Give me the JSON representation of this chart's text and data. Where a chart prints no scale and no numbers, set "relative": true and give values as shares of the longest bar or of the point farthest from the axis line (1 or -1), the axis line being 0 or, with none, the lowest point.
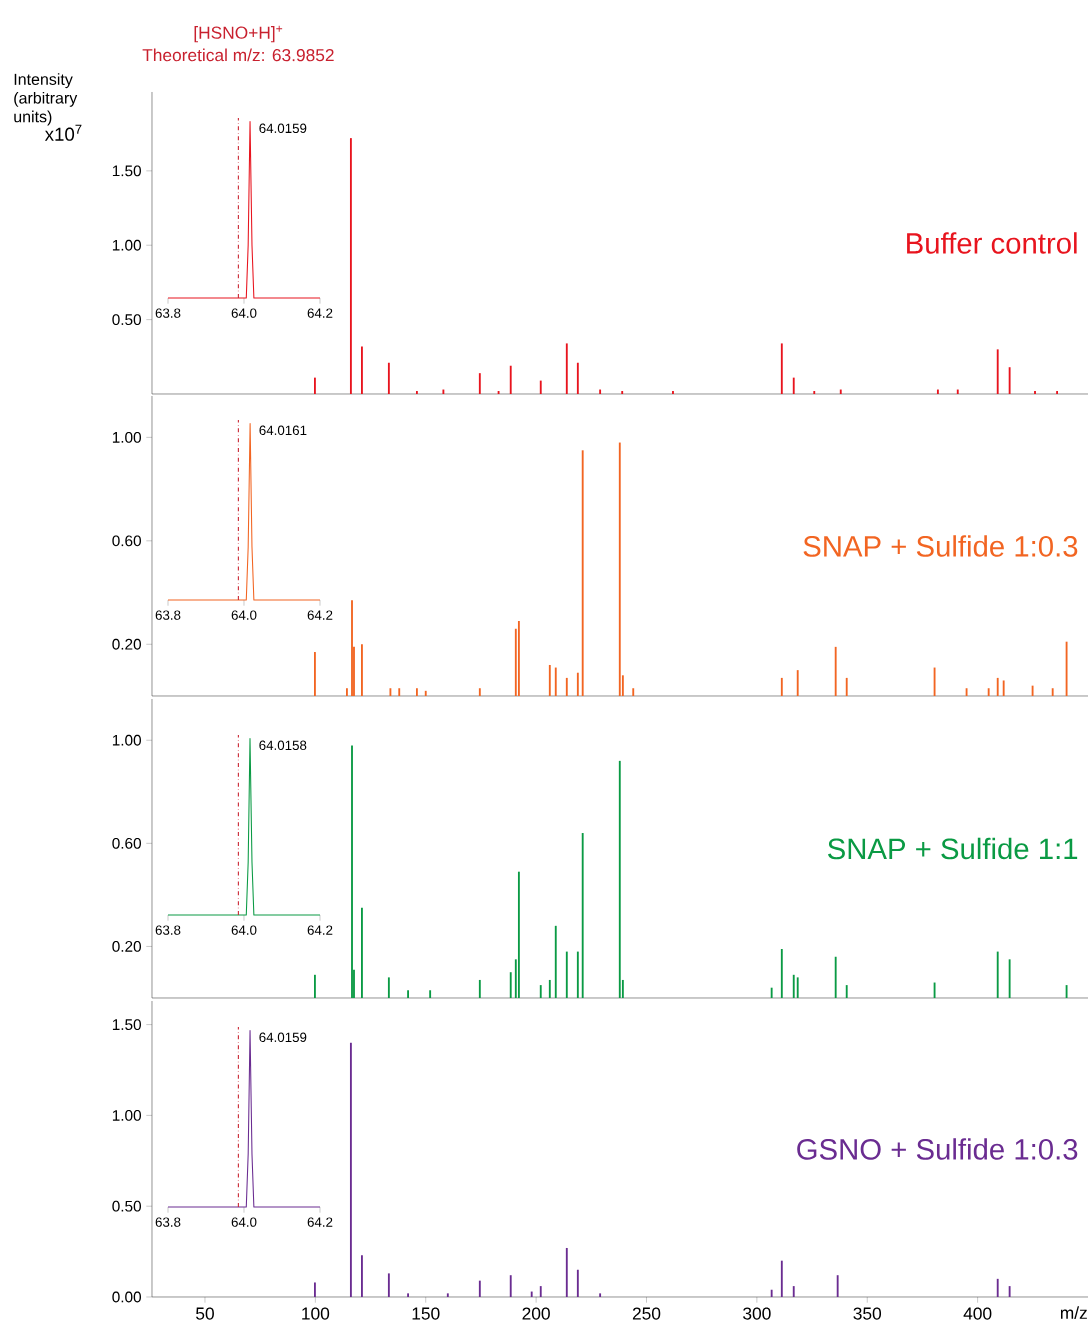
{
  "chart_data": [
    {
      "type": "bar",
      "ylabel": "Intensity (arbitrary units)",
      "annotations": [
        "x10$^{7}$"
      ],
      "xlim": [
        26,
        450
      ],
      "ylim": [
        0,
        2.03
      ],
      "yticks": [
        {
          "value": 0.5,
          "label": "0.50"
        },
        {
          "value": 1.0,
          "label": "1.00"
        },
        {
          "value": 1.5,
          "label": "1.50"
        }
      ],
      "tick_labels": "y",
      "series": [
        {
          "name": "Buffer control",
          "color": "#e8141e",
          "x": [
            99.8,
            116.1,
            121.1,
            133.3,
            146,
            158,
            174.5,
            183,
            188.5,
            202.1,
            213.9,
            218.9,
            229,
            239,
            262,
            311.3,
            316.7,
            326,
            338,
            382,
            391,
            409.1,
            414.5,
            426,
            436
          ],
          "values": [
            0.11,
            1.72,
            0.32,
            0.21,
            0.02,
            0.03,
            0.14,
            0.02,
            0.19,
            0.09,
            0.34,
            0.21,
            0.03,
            0.02,
            0.02,
            0.34,
            0.11,
            0.02,
            0.03,
            0.03,
            0.03,
            0.3,
            0.18,
            0.02,
            0.02
          ]
        }
      ]
    },
    {
      "type": "line",
      "relative": true,
      "xlim": [
        63.8,
        64.2
      ],
      "xticks": [
        {
          "value": 63.8,
          "label": "63.8"
        },
        {
          "value": 64.0,
          "label": "64.0"
        },
        {
          "value": 64.2,
          "label": "64.2"
        }
      ],
      "ref_lines": [
        {
          "axis": "x",
          "value": 63.9852,
          "label": "Theoretical m/z: 63.9852",
          "color": "#c8202e",
          "line_style": "dashdotted"
        }
      ],
      "annotations": [
        "[HSNO+H]$^{+}$",
        {
          "text": "64.0159",
          "x": 64.0159,
          "y": 1
        }
      ],
      "series": [
        {
          "color": "#e8141e",
          "x": [
            63.8,
            64.006,
            64.011,
            64.0159,
            64.021,
            64.026,
            64.2
          ],
          "values": [
            0,
            0,
            0.3,
            1,
            0.3,
            0,
            0
          ]
        }
      ]
    },
    {
      "type": "bar",
      "xlim": [
        26,
        450
      ],
      "ylim": [
        0,
        1.16
      ],
      "yticks": [
        {
          "value": 0.2,
          "label": "0.20"
        },
        {
          "value": 0.6,
          "label": "0.60"
        },
        {
          "value": 1.0,
          "label": "1.00"
        }
      ],
      "tick_labels": "y",
      "series": [
        {
          "name": "SNAP + Sulfide 1:0.3",
          "color": "#f26522",
          "x": [
            99.8,
            114.3,
            116.6,
            117.5,
            121.1,
            134,
            138,
            146,
            150,
            174.5,
            190.8,
            192.2,
            206.2,
            208.9,
            213.9,
            218.9,
            221.1,
            237.9,
            239.3,
            244,
            311.3,
            318.5,
            335.7,
            340.7,
            380.5,
            395,
            405,
            409.1,
            411.8,
            424.9,
            434,
            440.3
          ],
          "values": [
            0.17,
            0.03,
            0.37,
            0.19,
            0.2,
            0.03,
            0.03,
            0.03,
            0.02,
            0.03,
            0.26,
            0.29,
            0.12,
            0.11,
            0.07,
            0.09,
            0.95,
            0.98,
            0.08,
            0.03,
            0.07,
            0.1,
            0.19,
            0.07,
            0.11,
            0.03,
            0.03,
            0.07,
            0.06,
            0.04,
            0.03,
            0.21
          ]
        }
      ]
    },
    {
      "type": "line",
      "relative": true,
      "xlim": [
        63.8,
        64.2
      ],
      "xticks": [
        {
          "value": 63.8,
          "label": "63.8"
        },
        {
          "value": 64.0,
          "label": "64.0"
        },
        {
          "value": 64.2,
          "label": "64.2"
        }
      ],
      "ref_lines": [
        {
          "axis": "x",
          "value": 63.9852,
          "color": "#c8202e",
          "line_style": "dashdotted"
        }
      ],
      "annotations": [
        {
          "text": "64.0161",
          "x": 64.0161,
          "y": 1
        }
      ],
      "series": [
        {
          "color": "#f26522",
          "x": [
            63.8,
            64.006,
            64.011,
            64.0161,
            64.021,
            64.026,
            64.2
          ],
          "values": [
            0,
            0,
            0.3,
            1,
            0.3,
            0,
            0
          ]
        }
      ]
    },
    {
      "type": "bar",
      "xlim": [
        26,
        450
      ],
      "ylim": [
        0,
        1.16
      ],
      "yticks": [
        {
          "value": 0.2,
          "label": "0.20"
        },
        {
          "value": 0.6,
          "label": "0.60"
        },
        {
          "value": 1.0,
          "label": "1.00"
        }
      ],
      "tick_labels": "y",
      "series": [
        {
          "name": "SNAP + Sulfide 1:1",
          "color": "#0a9a44",
          "x": [
            99.8,
            116.6,
            117.5,
            121.1,
            133.3,
            142,
            152,
            174.5,
            188.5,
            190.8,
            192.2,
            202.1,
            206.2,
            208.9,
            213.9,
            218.9,
            221.1,
            237.9,
            239.3,
            306.7,
            311.3,
            316.7,
            318.5,
            335.7,
            340.7,
            380.5,
            409.1,
            414.5,
            440.3
          ],
          "values": [
            0.09,
            0.98,
            0.11,
            0.35,
            0.08,
            0.03,
            0.03,
            0.07,
            0.1,
            0.15,
            0.49,
            0.05,
            0.07,
            0.28,
            0.18,
            0.18,
            0.64,
            0.92,
            0.07,
            0.04,
            0.19,
            0.09,
            0.08,
            0.16,
            0.05,
            0.06,
            0.18,
            0.15,
            0.05
          ]
        }
      ]
    },
    {
      "type": "line",
      "relative": true,
      "xlim": [
        63.8,
        64.2
      ],
      "xticks": [
        {
          "value": 63.8,
          "label": "63.8"
        },
        {
          "value": 64.0,
          "label": "64.0"
        },
        {
          "value": 64.2,
          "label": "64.2"
        }
      ],
      "ref_lines": [
        {
          "axis": "x",
          "value": 63.9852,
          "color": "#c8202e",
          "line_style": "dashdotted"
        }
      ],
      "annotations": [
        {
          "text": "64.0158",
          "x": 64.0158,
          "y": 1
        }
      ],
      "series": [
        {
          "color": "#0a9a44",
          "x": [
            63.8,
            64.006,
            64.011,
            64.0158,
            64.021,
            64.026,
            64.2
          ],
          "values": [
            0,
            0,
            0.3,
            1,
            0.3,
            0,
            0
          ]
        }
      ]
    },
    {
      "type": "bar",
      "xlabel": "m/z",
      "xlim": [
        26,
        450
      ],
      "ylim": [
        0,
        1.63
      ],
      "xticks": [
        50,
        100,
        150,
        200,
        250,
        300,
        350,
        400
      ],
      "yticks": [
        {
          "value": 0,
          "label": "0.00"
        },
        {
          "value": 0.5,
          "label": "0.50"
        },
        {
          "value": 1.0,
          "label": "1.00"
        },
        {
          "value": 1.5,
          "label": "1.50"
        }
      ],
      "series": [
        {
          "name": "GSNO + Sulfide 1:0.3",
          "color": "#6a2c91",
          "x": [
            99.8,
            116.1,
            121.1,
            133.3,
            142,
            160,
            174.5,
            188.5,
            198,
            202.1,
            213.9,
            218.9,
            229,
            306.7,
            311.3,
            316.7,
            336.6,
            409.1,
            414.5
          ],
          "values": [
            0.08,
            1.4,
            0.23,
            0.13,
            0.02,
            0.02,
            0.09,
            0.12,
            0.03,
            0.06,
            0.27,
            0.15,
            0.02,
            0.04,
            0.2,
            0.06,
            0.12,
            0.1,
            0.06
          ]
        }
      ]
    },
    {
      "type": "line",
      "relative": true,
      "xlim": [
        63.8,
        64.2
      ],
      "xticks": [
        {
          "value": 63.8,
          "label": "63.8"
        },
        {
          "value": 64.0,
          "label": "64.0"
        },
        {
          "value": 64.2,
          "label": "64.2"
        }
      ],
      "ref_lines": [
        {
          "axis": "x",
          "value": 63.9852,
          "color": "#c8202e",
          "line_style": "dashdotted"
        }
      ],
      "annotations": [
        {
          "text": "64.0159",
          "x": 64.0159,
          "y": 1
        }
      ],
      "series": [
        {
          "color": "#6a2c91",
          "x": [
            63.8,
            64.006,
            64.011,
            64.0159,
            64.021,
            64.026,
            64.2
          ],
          "values": [
            0,
            0,
            0.3,
            1,
            0.3,
            0,
            0
          ]
        }
      ]
    }
  ]
}
